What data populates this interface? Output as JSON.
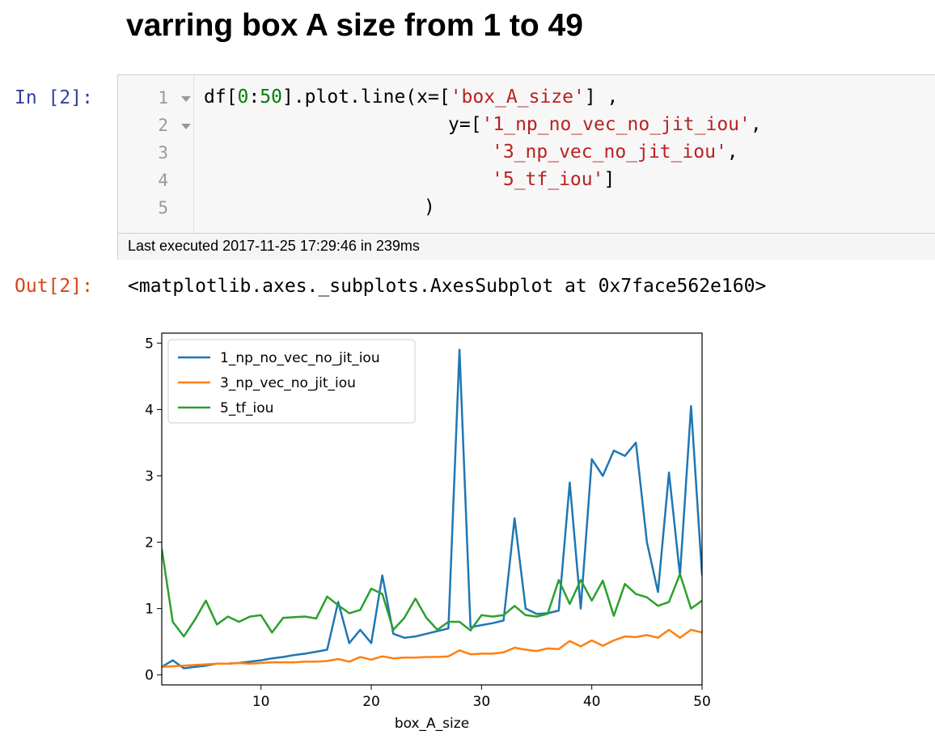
{
  "heading": "varring box A size from 1 to 49",
  "input_cell": {
    "prompt": "In [2]:",
    "line_numbers": [
      "1",
      "2",
      "3",
      "4",
      "5"
    ],
    "code": {
      "l1_pre": "df[",
      "l1_n1": "0",
      "l1_colon": ":",
      "l1_n2": "50",
      "l1_mid": "].plot.line(x=[",
      "l1_str": "'box_A_size'",
      "l1_post": "] ,",
      "l2_pre": "y=[",
      "l2_str": "'1_np_no_vec_no_jit_iou'",
      "l2_post": ",",
      "l3_str": "'3_np_vec_no_jit_iou'",
      "l3_post": ",",
      "l4_str": "'5_tf_iou'",
      "l4_post": "]",
      "l5": ")"
    },
    "exec_info": "Last executed 2017-11-25 17:29:46 in 239ms"
  },
  "output_cell": {
    "prompt": "Out[2]:",
    "text": "<matplotlib.axes._subplots.AxesSubplot at 0x7face562e160>"
  },
  "chart_data": {
    "type": "line",
    "xlabel": "box_A_size",
    "ylabel": "",
    "xlim": [
      1,
      50
    ],
    "ylim": [
      -0.15,
      5.15
    ],
    "xticks": [
      10,
      20,
      30,
      40,
      50
    ],
    "yticks": [
      0,
      1,
      2,
      3,
      4,
      5
    ],
    "legend_position": "top-left",
    "grid": false,
    "x": [
      1,
      2,
      3,
      4,
      5,
      6,
      7,
      8,
      9,
      10,
      11,
      12,
      13,
      14,
      15,
      16,
      17,
      18,
      19,
      20,
      21,
      22,
      23,
      24,
      25,
      26,
      27,
      28,
      29,
      30,
      31,
      32,
      33,
      34,
      35,
      36,
      37,
      38,
      39,
      40,
      41,
      42,
      43,
      44,
      45,
      46,
      47,
      48,
      49,
      50
    ],
    "series": [
      {
        "name": "1_np_no_vec_no_jit_iou",
        "color": "#1f77b4",
        "values": [
          0.12,
          0.22,
          0.1,
          0.12,
          0.14,
          0.17,
          0.17,
          0.18,
          0.2,
          0.22,
          0.25,
          0.27,
          0.3,
          0.32,
          0.35,
          0.38,
          1.1,
          0.48,
          0.68,
          0.48,
          1.5,
          0.62,
          0.56,
          0.58,
          0.62,
          0.66,
          0.7,
          4.9,
          0.72,
          0.75,
          0.78,
          0.82,
          2.36,
          1.0,
          0.92,
          0.93,
          0.97,
          2.9,
          1.0,
          3.25,
          3.0,
          3.38,
          3.3,
          3.5,
          2.0,
          1.25,
          3.05,
          1.5,
          4.05,
          1.5
        ]
      },
      {
        "name": "3_np_vec_no_jit_iou",
        "color": "#ff7f0e",
        "values": [
          0.12,
          0.13,
          0.14,
          0.15,
          0.16,
          0.17,
          0.17,
          0.18,
          0.17,
          0.18,
          0.19,
          0.19,
          0.19,
          0.2,
          0.2,
          0.21,
          0.24,
          0.2,
          0.27,
          0.23,
          0.28,
          0.25,
          0.26,
          0.26,
          0.27,
          0.27,
          0.28,
          0.37,
          0.31,
          0.32,
          0.32,
          0.34,
          0.41,
          0.38,
          0.36,
          0.4,
          0.39,
          0.51,
          0.43,
          0.52,
          0.44,
          0.52,
          0.58,
          0.57,
          0.6,
          0.56,
          0.68,
          0.56,
          0.68,
          0.64
        ]
      },
      {
        "name": "5_tf_iou",
        "color": "#2ca02c",
        "values": [
          1.9,
          0.8,
          0.58,
          0.83,
          1.12,
          0.76,
          0.88,
          0.8,
          0.88,
          0.9,
          0.64,
          0.86,
          0.87,
          0.88,
          0.85,
          1.18,
          1.05,
          0.93,
          0.98,
          1.3,
          1.22,
          0.68,
          0.86,
          1.15,
          0.86,
          0.68,
          0.8,
          0.8,
          0.67,
          0.9,
          0.88,
          0.9,
          1.04,
          0.9,
          0.88,
          0.92,
          1.43,
          1.07,
          1.43,
          1.12,
          1.42,
          0.89,
          1.37,
          1.22,
          1.17,
          1.04,
          1.1,
          1.52,
          1.0,
          1.12
        ]
      }
    ]
  }
}
